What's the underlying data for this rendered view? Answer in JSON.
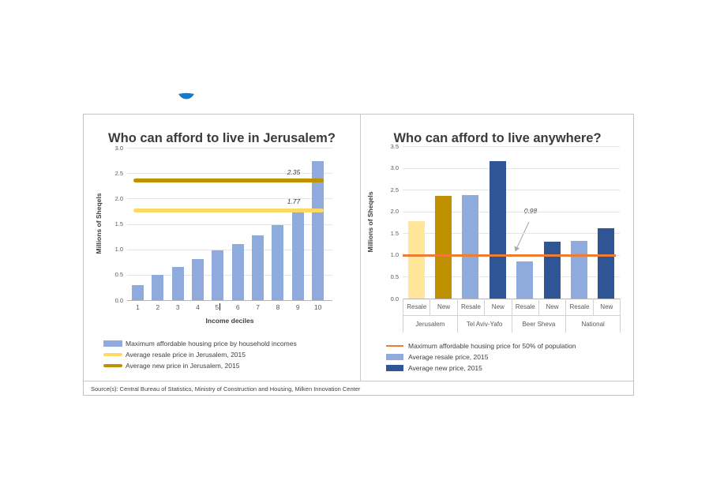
{
  "page": {
    "source_note": "Source(s): Central Bureau of Statistics, Ministry of Construction and Housing, Milken Innovation Center"
  },
  "colors": {
    "light_blue": "#8FAADC",
    "dark_blue": "#2F5597",
    "yellow_line": "#FFD966",
    "light_yellow_bar": "#FFE699",
    "dark_gold": "#BF9000",
    "orange_line": "#ED7D31",
    "logo_blue": "#1E79C0",
    "title_text": "#3b3b3b",
    "axis_text": "#595959"
  },
  "chart_data": [
    {
      "type": "bar",
      "title": "Who can afford to live in Jerusalem?",
      "xlabel": "Income deciles",
      "ylabel": "Millions of Sheqels",
      "ylim": [
        0,
        3.0
      ],
      "yticks": [
        "3.0",
        "2.5",
        "2.0",
        "1.5",
        "1.0",
        "0.5",
        "0.0"
      ],
      "grid": true,
      "categories": [
        "1",
        "2",
        "3",
        "4",
        "5",
        "6",
        "7",
        "8",
        "9",
        "10"
      ],
      "cursor_after_category": "5",
      "values": [
        0.3,
        0.5,
        0.66,
        0.81,
        0.98,
        1.1,
        1.27,
        1.47,
        1.8,
        2.73
      ],
      "bar_color": "#8FAADC",
      "ref_lines": [
        {
          "value": 2.35,
          "label": "2.35",
          "color": "#BF9000"
        },
        {
          "value": 1.77,
          "label": "1.77",
          "color": "#FFD966"
        }
      ],
      "legend_position": "bottom-left",
      "legend": [
        {
          "label": "Maximum affordable housing price by household incomes",
          "swatch": "rect",
          "color": "#8FAADC"
        },
        {
          "label": "Average resale price in Jerusalem, 2015",
          "swatch": "line",
          "color": "#FFD966"
        },
        {
          "label": "Average new price in Jerusalem, 2015",
          "swatch": "line",
          "color": "#BF9000"
        }
      ]
    },
    {
      "type": "bar",
      "title": "Who can afford to live anywhere?",
      "xlabel": "",
      "ylabel": "Millions of Sheqels",
      "ylim": [
        0,
        3.5
      ],
      "yticks": [
        "3.5",
        "3.0",
        "2.5",
        "2.0",
        "1.5",
        "1.0",
        "0.5",
        "0.0"
      ],
      "grid": true,
      "groups": [
        "Jerusalem",
        "Tel Aviv-Yafo",
        "Beer Sheva",
        "National"
      ],
      "bar_labels": [
        "Resale",
        "New",
        "Resale",
        "New",
        "Resale",
        "New",
        "Resale",
        "New"
      ],
      "values": [
        1.77,
        2.35,
        2.38,
        3.15,
        0.85,
        1.3,
        1.33,
        1.62
      ],
      "bar_colors": [
        "#FFE699",
        "#BF9000",
        "#8FAADC",
        "#2F5597",
        "#8FAADC",
        "#2F5597",
        "#8FAADC",
        "#2F5597"
      ],
      "ref_lines": [
        {
          "value": 0.98,
          "label": "0.98",
          "color": "#ED7D31"
        }
      ],
      "legend_position": "bottom-left",
      "legend": [
        {
          "label": "Maximum affordable housing price for 50% of population",
          "swatch": "line",
          "color": "#ED7D31"
        },
        {
          "label": "Average resale price, 2015",
          "swatch": "rect",
          "color": "#8FAADC"
        },
        {
          "label": "Average new price, 2015",
          "swatch": "rect",
          "color": "#2F5597"
        }
      ]
    }
  ]
}
